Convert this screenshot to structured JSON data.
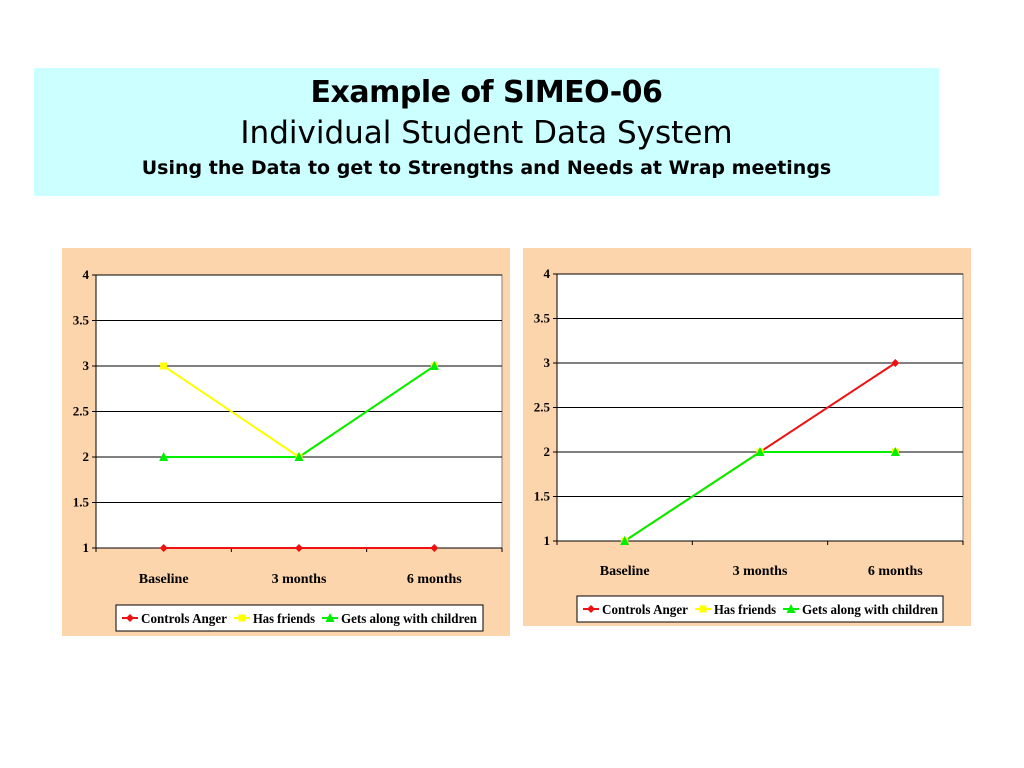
{
  "title": {
    "line1": "Example of SIMEO-06",
    "line2": "Individual Student Data System",
    "line3": "Using the Data to get to Strengths and Needs at Wrap meetings"
  },
  "colors": {
    "controls_anger": "#ee1111",
    "has_friends": "#ffff00",
    "gets_along": "#00ee00"
  },
  "chart_data": [
    {
      "type": "line",
      "categories": [
        "Baseline",
        "3 months",
        "6 months"
      ],
      "ylim": [
        1,
        4
      ],
      "yticks": [
        "1",
        "1.5",
        "2",
        "2.5",
        "3",
        "3.5",
        "4"
      ],
      "grid": true,
      "legend": "bottom",
      "series": [
        {
          "name": "Controls Anger",
          "values": [
            1,
            1,
            1
          ],
          "marker": "diamond",
          "color": "#ee1111"
        },
        {
          "name": "Has friends",
          "values": [
            3,
            2,
            3
          ],
          "marker": "square",
          "color": "#ffff00"
        },
        {
          "name": "Gets along with children",
          "values": [
            2,
            2,
            3
          ],
          "marker": "triangle",
          "color": "#00ee00"
        }
      ]
    },
    {
      "type": "line",
      "categories": [
        "Baseline",
        "3 months",
        "6 months"
      ],
      "ylim": [
        1,
        4
      ],
      "yticks": [
        "1",
        "1.5",
        "2",
        "2.5",
        "3",
        "3.5",
        "4"
      ],
      "grid": true,
      "legend": "bottom",
      "series": [
        {
          "name": "Controls Anger",
          "values": [
            1,
            2,
            3
          ],
          "marker": "diamond",
          "color": "#ee1111"
        },
        {
          "name": "Has friends",
          "values": [
            1,
            2,
            2
          ],
          "marker": "square",
          "color": "#ffff00"
        },
        {
          "name": "Gets along with children",
          "values": [
            1,
            2,
            2
          ],
          "marker": "triangle",
          "color": "#00ee00"
        }
      ]
    }
  ]
}
